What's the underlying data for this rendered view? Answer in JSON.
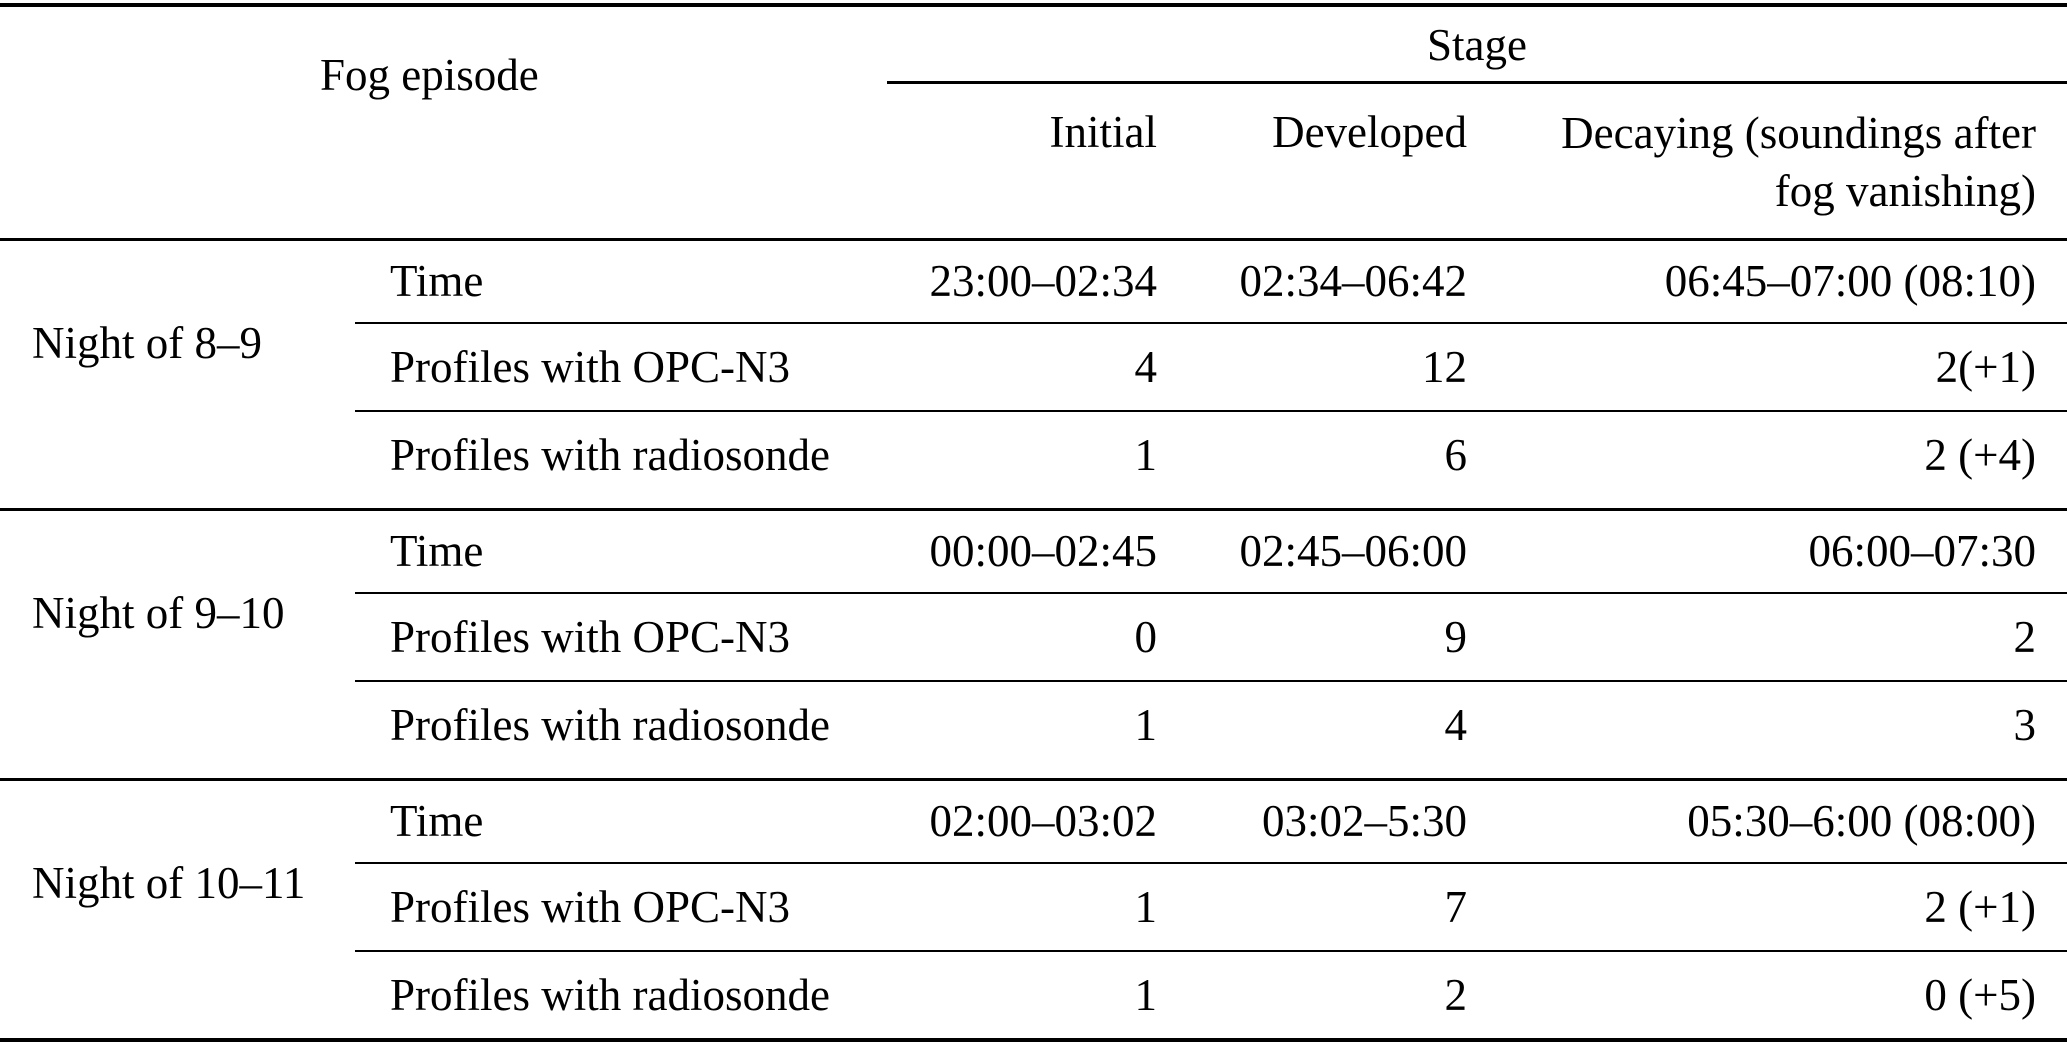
{
  "header": {
    "fog_episode": "Fog episode",
    "stage": "Stage",
    "col_initial": "Initial",
    "col_developed": "Developed",
    "col_decaying_line1": "Decaying (soundings after",
    "col_decaying_line2": "fog vanishing)"
  },
  "groups": [
    {
      "label": "Night of 8–9",
      "rows": [
        {
          "label": "Time",
          "values": [
            "23:00–02:34",
            "02:34–06:42",
            "06:45–07:00 (08:10)"
          ]
        },
        {
          "label": "Profiles with OPC-N3",
          "values": [
            "4",
            "12",
            "2(+1)"
          ]
        },
        {
          "label": "Profiles with radiosonde",
          "values": [
            "1",
            "6",
            "2 (+4)"
          ]
        }
      ]
    },
    {
      "label": "Night of 9–10",
      "rows": [
        {
          "label": "Time",
          "values": [
            "00:00–02:45",
            "02:45–06:00",
            "06:00–07:30"
          ]
        },
        {
          "label": "Profiles with OPC-N3",
          "values": [
            "0",
            "9",
            "2"
          ]
        },
        {
          "label": "Profiles with radiosonde",
          "values": [
            "1",
            "4",
            "3"
          ]
        }
      ]
    },
    {
      "label": "Night of 10–11",
      "rows": [
        {
          "label": "Time",
          "values": [
            "02:00–03:02",
            "03:02–5:30",
            "05:30–6:00 (08:00)"
          ]
        },
        {
          "label": "Profiles with OPC-N3",
          "values": [
            "1",
            "7",
            "2 (+1)"
          ]
        },
        {
          "label": "Profiles with radiosonde",
          "values": [
            "1",
            "2",
            "0 (+5)"
          ]
        }
      ]
    }
  ]
}
